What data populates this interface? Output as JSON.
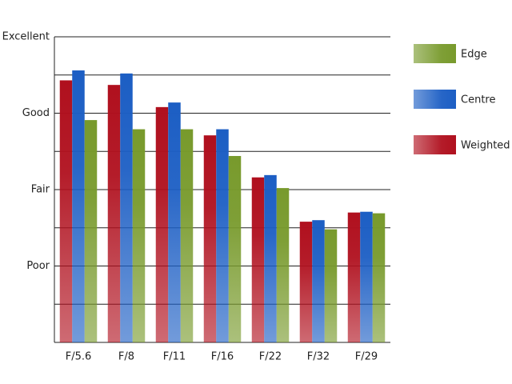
{
  "chart_data": {
    "type": "bar",
    "categories": [
      "F/5.6",
      "F/8",
      "F/11",
      "F/16",
      "F/22",
      "F/32",
      "F/29"
    ],
    "series": [
      {
        "name": "Weighted",
        "color": "#b0101e",
        "values": [
          3.43,
          3.37,
          3.08,
          2.71,
          2.16,
          1.58,
          1.7
        ]
      },
      {
        "name": "Centre",
        "color": "#1c5ec4",
        "values": [
          3.56,
          3.52,
          3.14,
          2.79,
          2.19,
          1.6,
          1.71
        ]
      },
      {
        "name": "Edge",
        "color": "#789a2c",
        "values": [
          2.91,
          2.79,
          2.79,
          2.44,
          2.02,
          1.48,
          1.69
        ]
      }
    ],
    "ylim": [
      0,
      4
    ],
    "yticks": [
      {
        "value": 1,
        "label": "Poor"
      },
      {
        "value": 2,
        "label": "Fair"
      },
      {
        "value": 3,
        "label": "Good"
      },
      {
        "value": 4,
        "label": "Excellent"
      }
    ],
    "minor_yticks": [
      0.5,
      1.5,
      2.5,
      3.5
    ],
    "grid": true,
    "legend": "right"
  }
}
